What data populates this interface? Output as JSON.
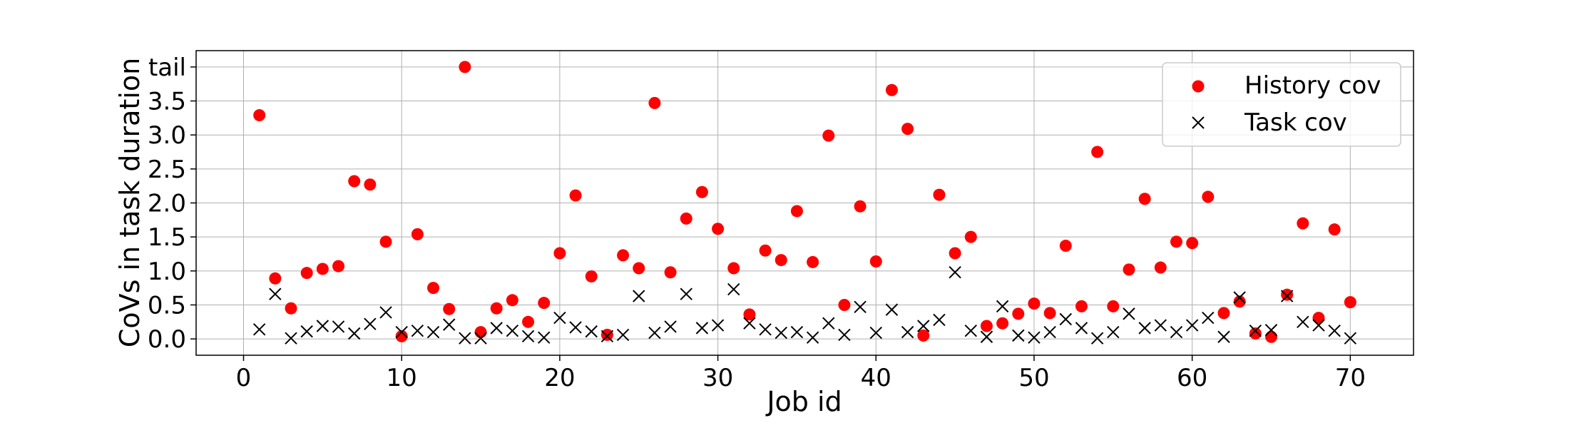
{
  "chart_data": {
    "type": "scatter",
    "xlabel": "Job id",
    "ylabel": "CoVs in task duration",
    "xlim": [
      -3,
      74
    ],
    "ylim": [
      -0.24,
      4.24
    ],
    "xticks": [
      0,
      10,
      20,
      30,
      40,
      50,
      60,
      70
    ],
    "yticks": [
      {
        "value": 0.0,
        "label": "0.0"
      },
      {
        "value": 0.5,
        "label": "0.5"
      },
      {
        "value": 1.0,
        "label": "1.0"
      },
      {
        "value": 1.5,
        "label": "1.5"
      },
      {
        "value": 2.0,
        "label": "2.0"
      },
      {
        "value": 2.5,
        "label": "2.5"
      },
      {
        "value": 3.0,
        "label": "3.0"
      },
      {
        "value": 3.5,
        "label": "3.5"
      },
      {
        "value": 4.0,
        "label": "tail"
      }
    ],
    "grid": true,
    "legend": {
      "position": "top-right"
    },
    "series": [
      {
        "name": "History cov",
        "marker": "circle",
        "color": "#ff0000",
        "x": [
          1,
          2,
          3,
          4,
          5,
          6,
          7,
          8,
          9,
          10,
          11,
          12,
          13,
          14,
          15,
          16,
          17,
          18,
          19,
          20,
          21,
          22,
          23,
          24,
          25,
          26,
          27,
          28,
          29,
          30,
          31,
          32,
          33,
          34,
          35,
          36,
          37,
          38,
          39,
          40,
          41,
          42,
          43,
          44,
          45,
          46,
          47,
          48,
          49,
          50,
          51,
          52,
          53,
          54,
          55,
          56,
          57,
          58,
          59,
          60,
          61,
          62,
          63,
          64,
          65,
          66,
          67,
          68,
          69,
          70
        ],
        "y": [
          3.29,
          0.89,
          0.45,
          0.97,
          1.03,
          1.07,
          2.32,
          2.27,
          1.43,
          0.04,
          1.54,
          0.75,
          0.44,
          4.0,
          0.1,
          0.45,
          0.57,
          0.25,
          0.53,
          1.26,
          2.11,
          0.92,
          0.06,
          1.23,
          1.04,
          3.47,
          0.98,
          1.77,
          2.16,
          1.62,
          1.04,
          0.36,
          1.3,
          1.16,
          1.88,
          1.13,
          2.99,
          0.5,
          1.95,
          1.14,
          3.66,
          3.09,
          0.05,
          2.12,
          1.26,
          1.5,
          0.19,
          0.23,
          0.37,
          0.52,
          0.38,
          1.37,
          0.48,
          2.75,
          0.48,
          1.02,
          2.06,
          1.05,
          1.43,
          1.41,
          2.09,
          0.38,
          0.55,
          0.08,
          0.03,
          0.65,
          1.7,
          0.31,
          1.61,
          0.54
        ]
      },
      {
        "name": "Task cov",
        "marker": "x",
        "color": "#000000",
        "x": [
          1,
          2,
          3,
          4,
          5,
          6,
          7,
          8,
          9,
          10,
          11,
          12,
          13,
          14,
          15,
          16,
          17,
          18,
          19,
          20,
          21,
          22,
          23,
          24,
          25,
          26,
          27,
          28,
          29,
          30,
          31,
          32,
          33,
          34,
          35,
          36,
          37,
          38,
          39,
          40,
          41,
          42,
          43,
          44,
          45,
          46,
          47,
          48,
          49,
          50,
          51,
          52,
          53,
          54,
          55,
          56,
          57,
          58,
          59,
          60,
          61,
          62,
          63,
          64,
          65,
          66,
          67,
          68,
          69,
          70
        ],
        "y": [
          0.14,
          0.66,
          0.01,
          0.11,
          0.19,
          0.18,
          0.08,
          0.22,
          0.39,
          0.1,
          0.12,
          0.1,
          0.21,
          0.01,
          0.01,
          0.16,
          0.12,
          0.04,
          0.02,
          0.31,
          0.17,
          0.11,
          0.04,
          0.06,
          0.63,
          0.09,
          0.18,
          0.66,
          0.16,
          0.2,
          0.73,
          0.23,
          0.14,
          0.09,
          0.1,
          0.02,
          0.23,
          0.06,
          0.47,
          0.09,
          0.43,
          0.1,
          0.19,
          0.28,
          0.98,
          0.12,
          0.03,
          0.48,
          0.05,
          0.02,
          0.1,
          0.29,
          0.16,
          0.01,
          0.1,
          0.37,
          0.16,
          0.2,
          0.1,
          0.2,
          0.31,
          0.03,
          0.61,
          0.12,
          0.13,
          0.63,
          0.25,
          0.2,
          0.12,
          0.01
        ]
      }
    ]
  }
}
